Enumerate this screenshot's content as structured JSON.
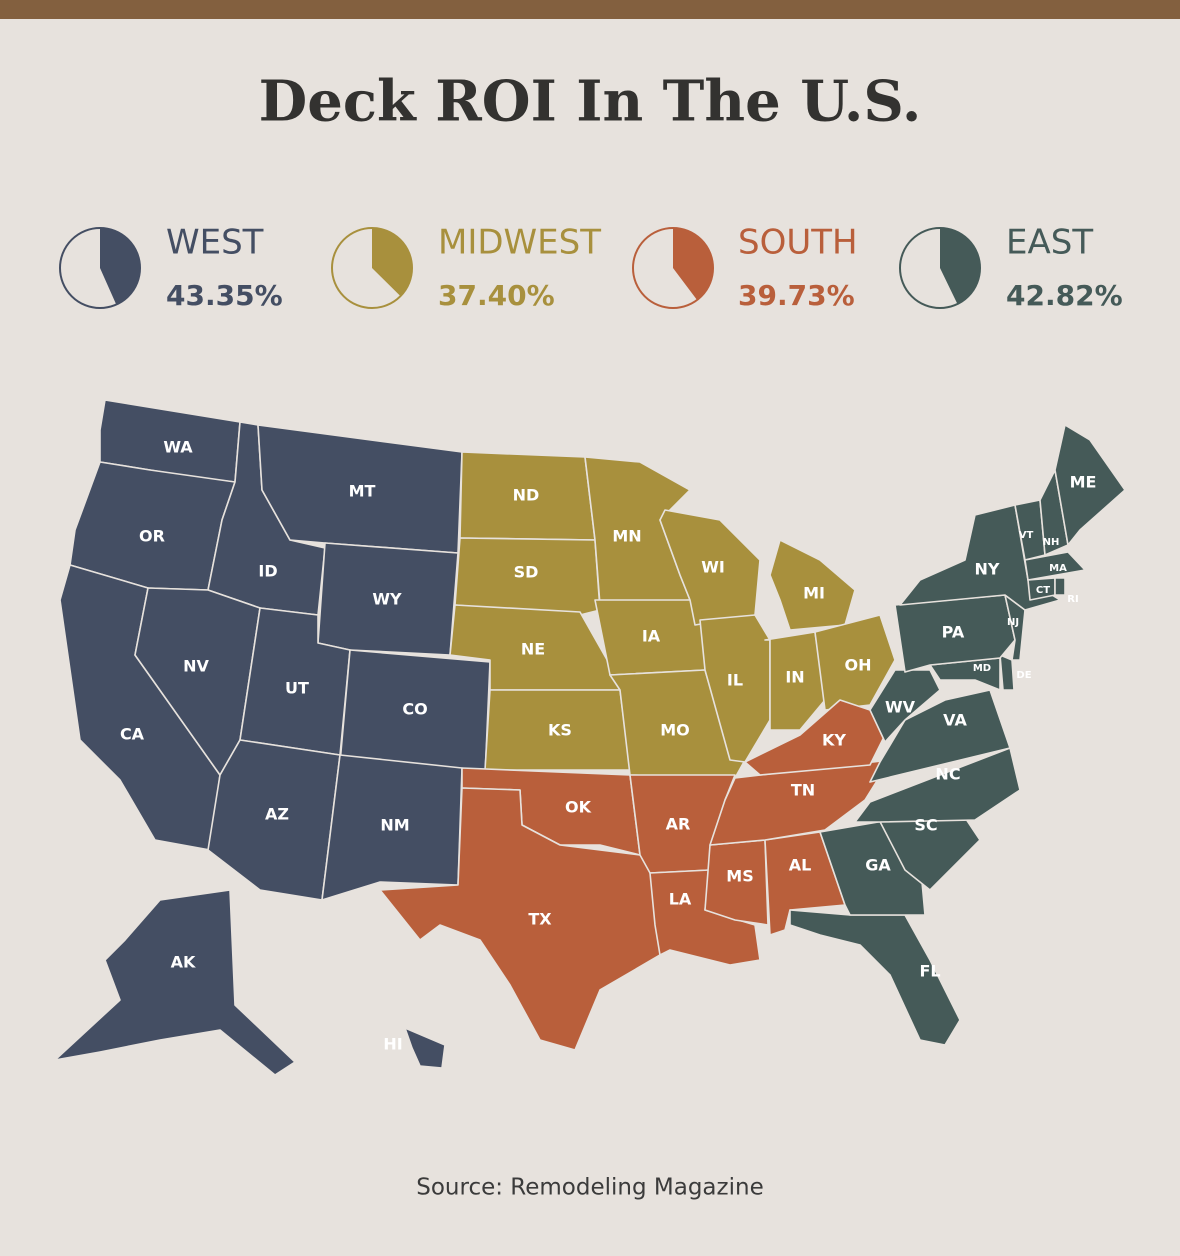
{
  "title": "Deck ROI In The U.S.",
  "regions": [
    {
      "name": "WEST",
      "roi": {
        "value": 43.35,
        "label": "43.35%"
      },
      "color": "#444e63",
      "states": [
        "WA",
        "OR",
        "CA",
        "ID",
        "MT",
        "WY",
        "NV",
        "UT",
        "CO",
        "AZ",
        "NM",
        "AK",
        "HI"
      ]
    },
    {
      "name": "MIDWEST",
      "roi": {
        "value": 37.4,
        "label": "37.40%"
      },
      "color": "#a8903d",
      "states": [
        "ND",
        "SD",
        "NE",
        "KS",
        "MN",
        "IA",
        "MO",
        "WI",
        "IL",
        "MI",
        "IN",
        "OH"
      ]
    },
    {
      "name": "SOUTH",
      "roi": {
        "value": 39.73,
        "label": "39.73%"
      },
      "color": "#b95f3b",
      "states": [
        "OK",
        "TX",
        "AR",
        "LA",
        "MS",
        "AL",
        "TN",
        "KY"
      ]
    },
    {
      "name": "EAST",
      "roi": {
        "value": 42.82,
        "label": "42.82%"
      },
      "color": "#455a58",
      "states": [
        "FL",
        "GA",
        "SC",
        "NC",
        "VA",
        "WV",
        "MD",
        "DE",
        "PA",
        "NJ",
        "NY",
        "VT",
        "NH",
        "MA",
        "CT",
        "RI",
        "ME"
      ]
    }
  ],
  "source": "Source: Remodeling Magazine"
}
